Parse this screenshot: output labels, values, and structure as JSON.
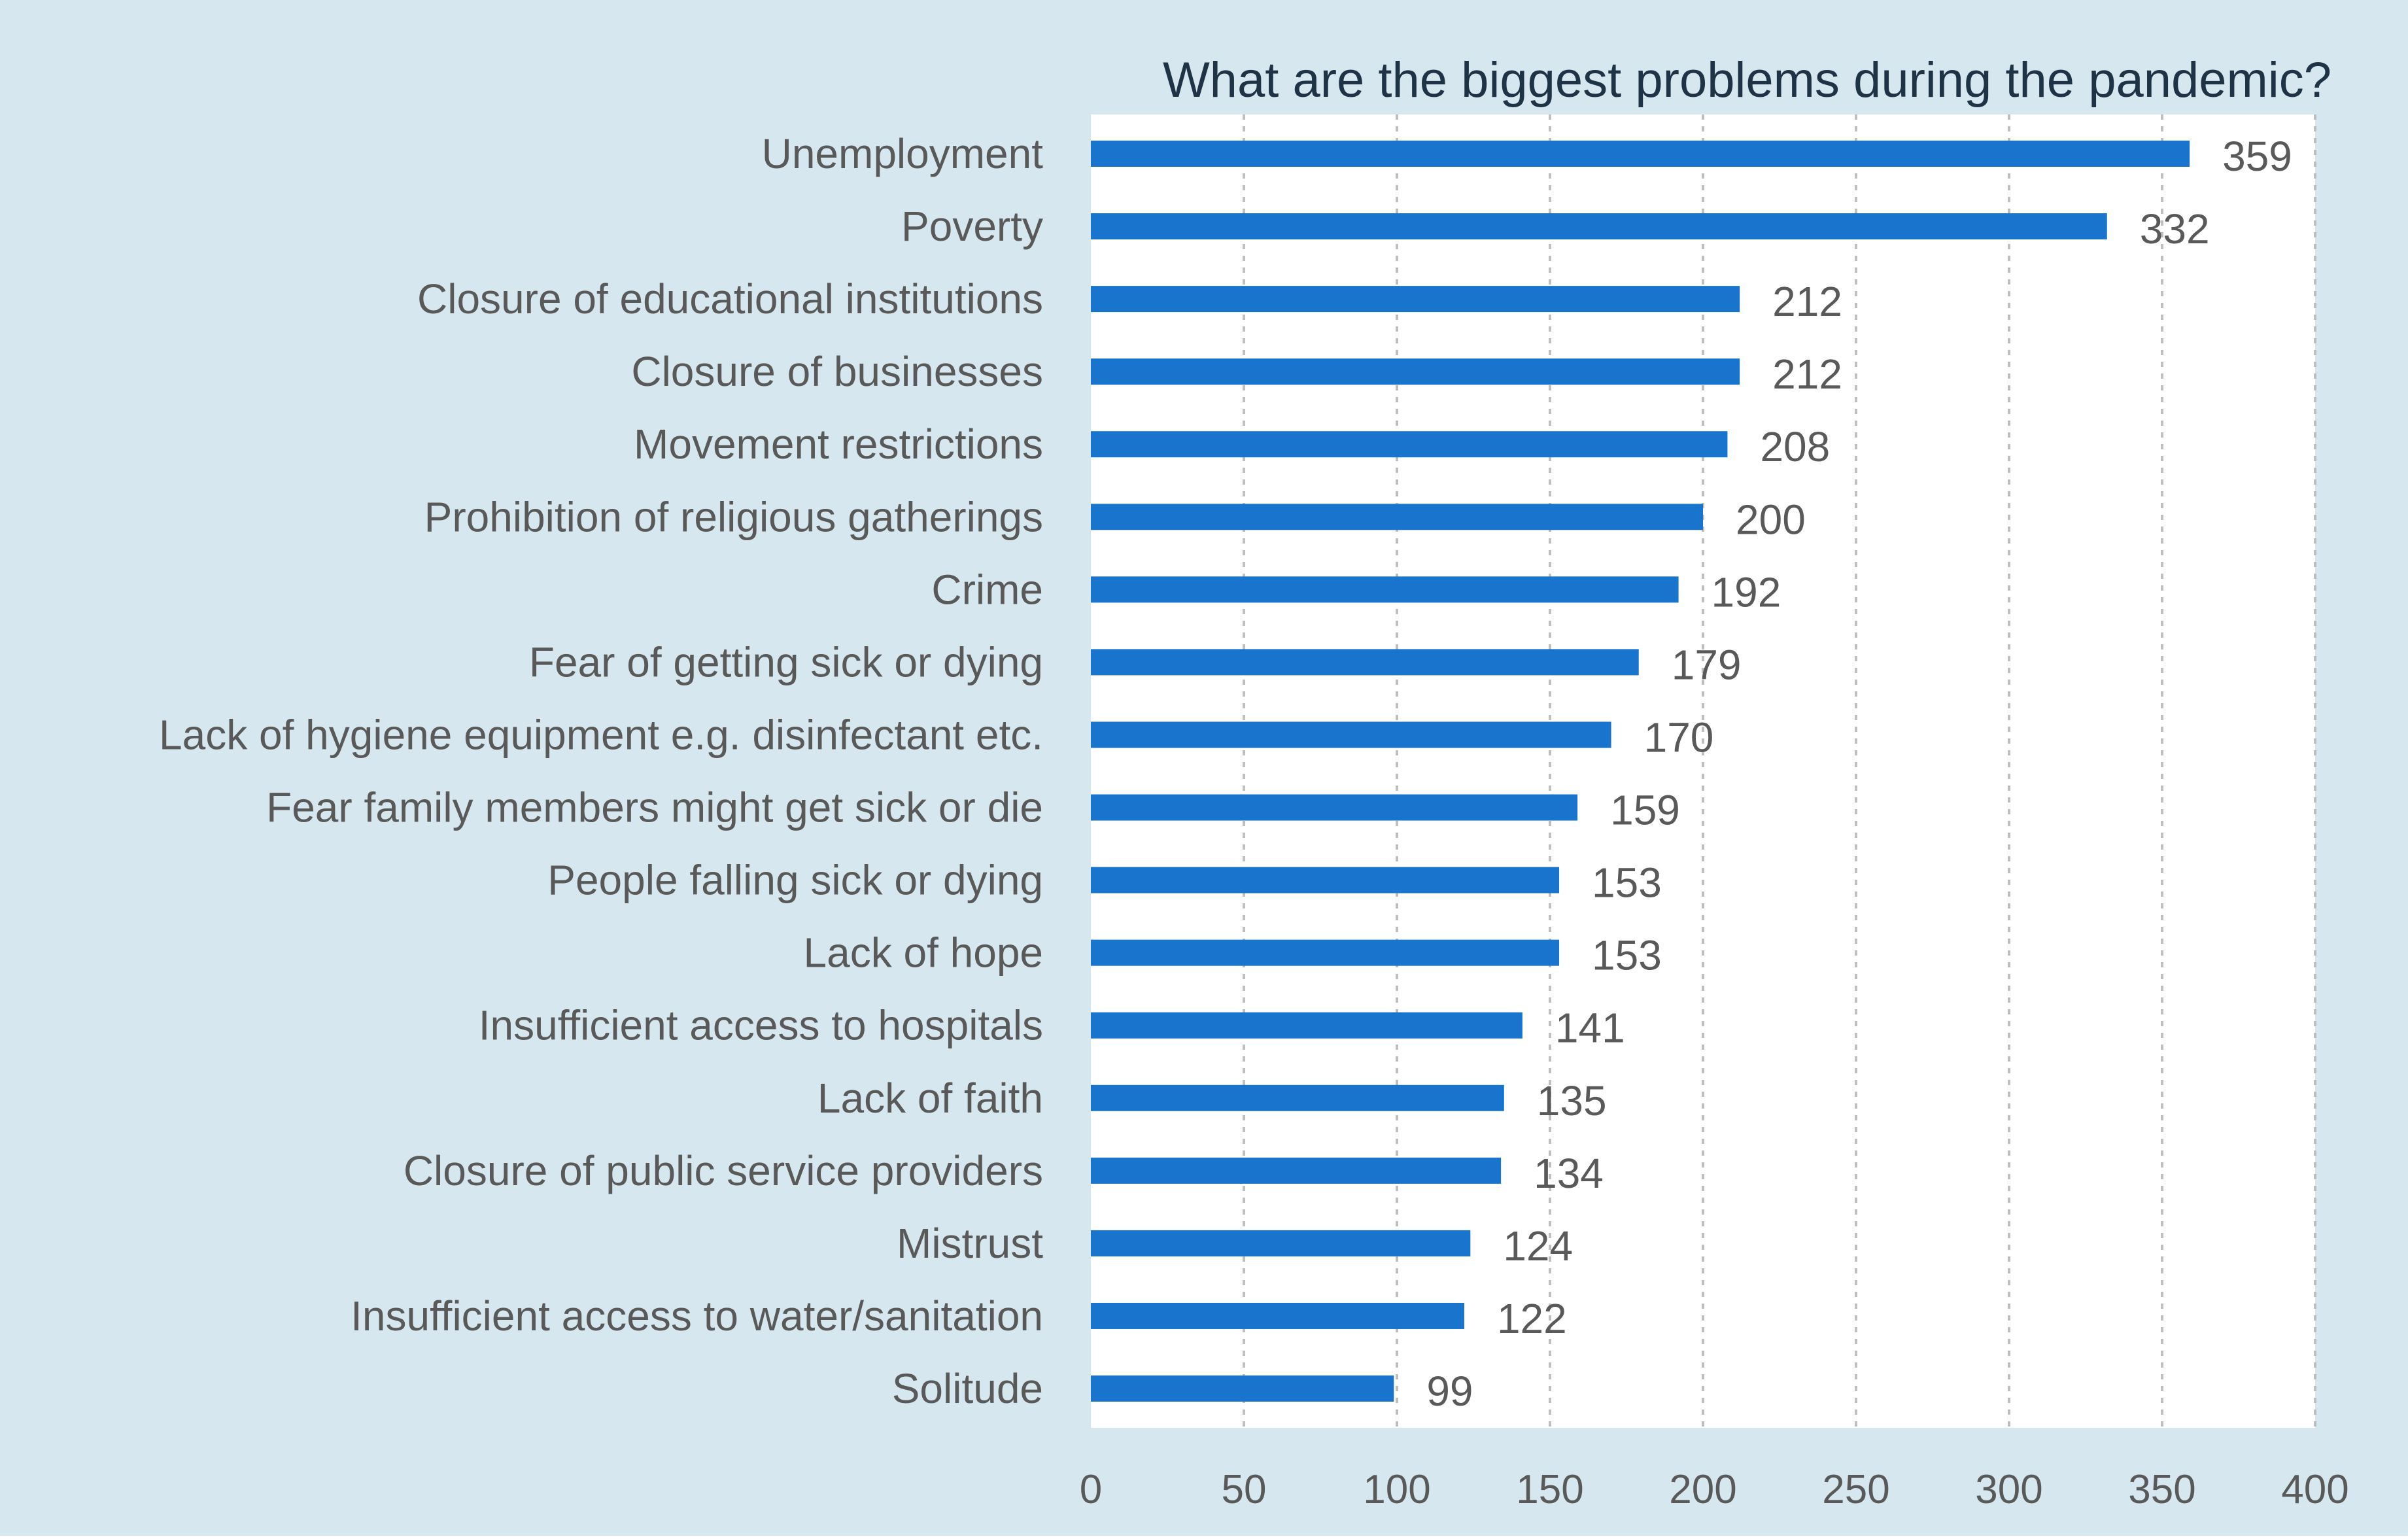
{
  "chart_data": {
    "type": "bar",
    "orientation": "horizontal",
    "title": "What are the biggest problems during the pandemic?",
    "xlabel": "",
    "ylabel": "",
    "xlim": [
      0,
      400
    ],
    "xticks": [
      0,
      50,
      100,
      150,
      200,
      250,
      300,
      350,
      400
    ],
    "grid": "vertical dashed",
    "legend": "none",
    "categories": [
      "Unemployment",
      "Poverty",
      "Closure of educational institutions",
      "Closure of businesses",
      "Movement restrictions",
      "Prohibition of religious gatherings",
      "Crime",
      "Fear of getting sick or dying",
      "Lack of hygiene equipment e.g. disinfectant etc.",
      "Fear family members might get sick or die",
      "People falling sick or dying",
      "Lack of hope",
      "Insufficient access to hospitals",
      "Lack of faith",
      "Closure of public service providers",
      "Mistrust",
      "Insufficient access to water/sanitation",
      "Solitude"
    ],
    "values": [
      359,
      332,
      212,
      212,
      208,
      200,
      192,
      179,
      170,
      159,
      153,
      153,
      141,
      135,
      134,
      124,
      122,
      99
    ],
    "colors": {
      "bar": "#1874CD",
      "background": "#D6E7EF",
      "plot_background": "#FFFFFF",
      "title": "#1F3347",
      "labels": "#595959",
      "grid": "#BFBFBF"
    }
  }
}
